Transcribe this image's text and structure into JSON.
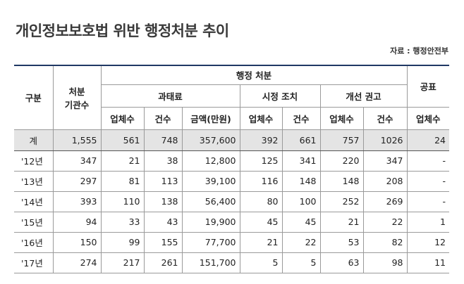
{
  "title": "개인정보보호법 위반 행정처분 추이",
  "source": "자료 : 행정안전부",
  "table": {
    "header": {
      "category": "구분",
      "agencies": [
        "처분",
        "기관수"
      ],
      "admin": "행정 처분",
      "disclosure": "공표",
      "fine": "과태료",
      "correction": "시정 조치",
      "recommendation": "개선 권고",
      "sub": [
        "업체수",
        "건수",
        "금액(만원)",
        "업체수",
        "건수",
        "업체수",
        "건수",
        "업체수"
      ]
    },
    "rows": [
      [
        "계",
        "1,555",
        "561",
        "748",
        "357,600",
        "392",
        "661",
        "757",
        "1026",
        "24"
      ],
      [
        "'12년",
        "347",
        "21",
        "38",
        "12,800",
        "125",
        "341",
        "220",
        "347",
        "-"
      ],
      [
        "'13년",
        "297",
        "81",
        "113",
        "39,100",
        "116",
        "148",
        "148",
        "208",
        "-"
      ],
      [
        "'14년",
        "393",
        "110",
        "138",
        "56,400",
        "80",
        "100",
        "252",
        "269",
        "-"
      ],
      [
        "'15년",
        "94",
        "33",
        "43",
        "19,900",
        "45",
        "45",
        "21",
        "22",
        "1"
      ],
      [
        "'16년",
        "150",
        "99",
        "155",
        "77,700",
        "21",
        "22",
        "53",
        "82",
        "12"
      ],
      [
        "'17년",
        "274",
        "217",
        "261",
        "151,700",
        "5",
        "5",
        "63",
        "98",
        "11"
      ]
    ]
  }
}
